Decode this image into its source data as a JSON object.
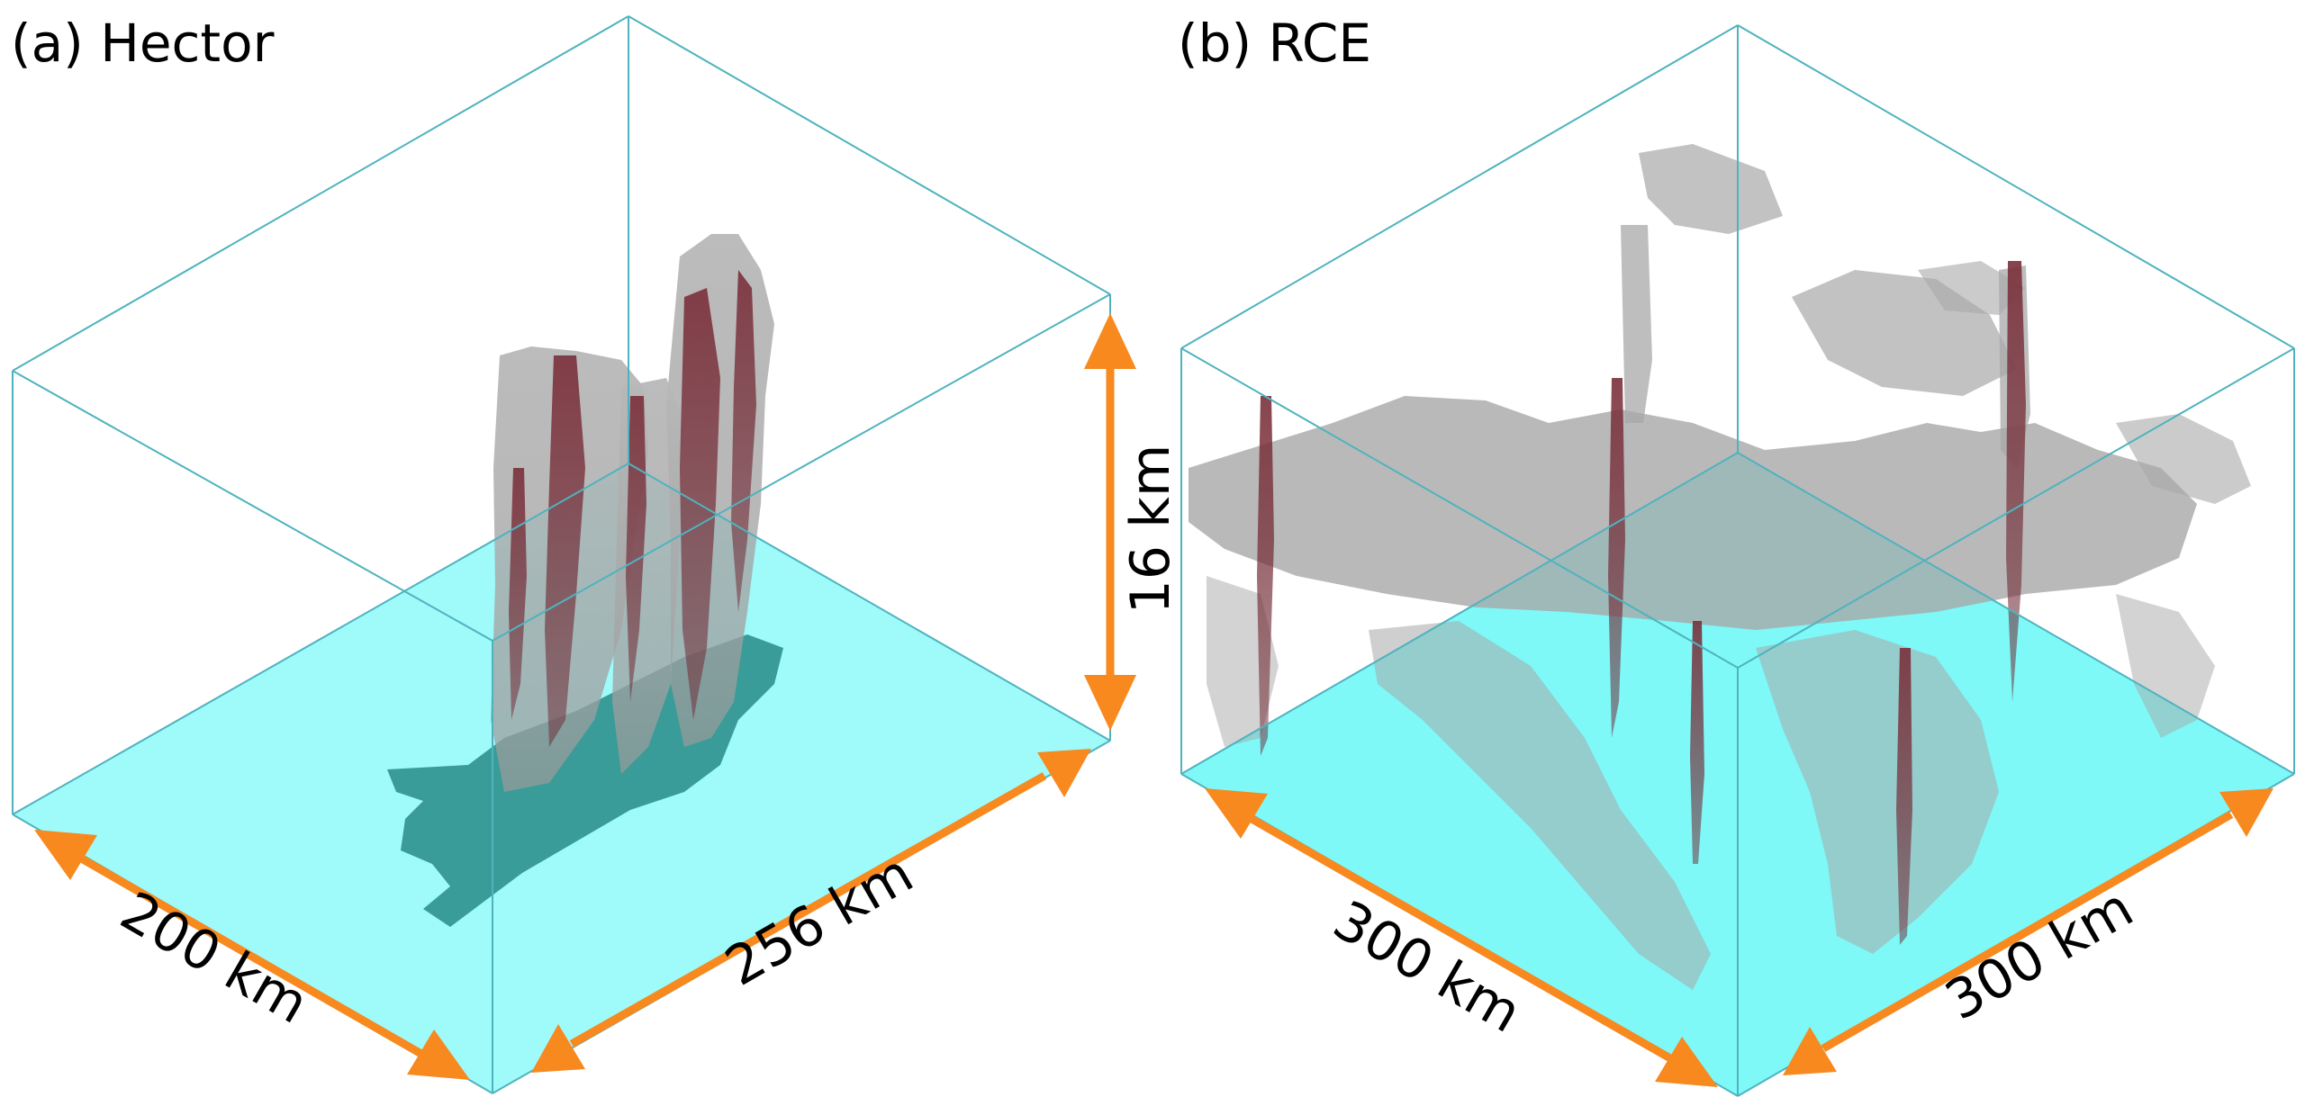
{
  "panels": [
    {
      "title": "(a) Hector",
      "dimensions": {
        "width": "200 km",
        "length": "256 km",
        "height": "16 km"
      }
    },
    {
      "title": "(b) RCE",
      "dimensions": {
        "width": "300 km",
        "length": "300 km"
      }
    }
  ],
  "colors": {
    "ground": "#9ffafa",
    "land": "#3a9c98",
    "cloud": "#a8a8a8",
    "updraft": "#6e2a35",
    "box_edge": "#4fb3bf",
    "arrow": "#f7891f"
  }
}
